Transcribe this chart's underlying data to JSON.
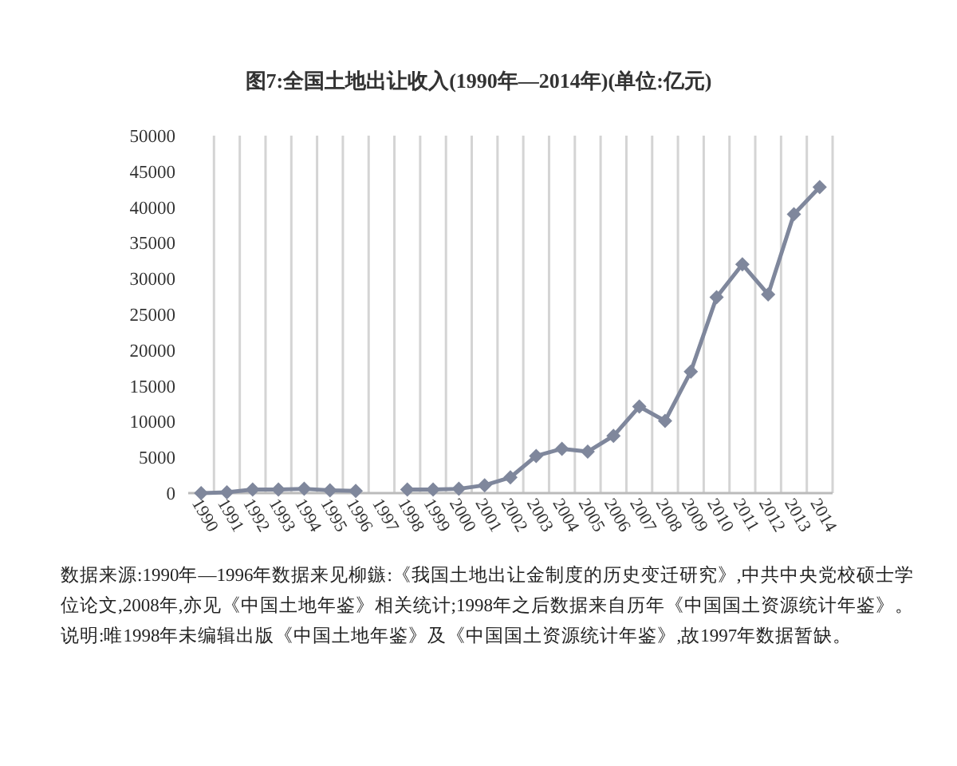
{
  "chart_data": {
    "type": "line",
    "title": "图7:全国土地出让收入(1990年—2014年)(单位:亿元)",
    "categories": [
      "1990",
      "1991",
      "1992",
      "1993",
      "1994",
      "1995",
      "1996",
      "1997",
      "1998",
      "1999",
      "2000",
      "2001",
      "2002",
      "2003",
      "2004",
      "2005",
      "2006",
      "2007",
      "2008",
      "2009",
      "2010",
      "2011",
      "2012",
      "2013",
      "2014"
    ],
    "series": [
      {
        "color": "#7f879c",
        "values": [
          0,
          100,
          500,
          500,
          600,
          400,
          300,
          null,
          500,
          500,
          600,
          1100,
          2200,
          5200,
          6200,
          5800,
          8000,
          12100,
          10100,
          17000,
          27400,
          32000,
          27800,
          39000,
          42800
        ]
      }
    ],
    "ylim": [
      0,
      50000
    ],
    "yticks": [
      0,
      5000,
      10000,
      15000,
      20000,
      25000,
      30000,
      35000,
      40000,
      45000,
      50000
    ],
    "grid": "x",
    "marker": "diamond",
    "line_style": "solid",
    "annotations": [
      "数据来源:1990年—1996年数据来见柳鏃:《我国土地出让金制度的历史变迁研究》,中共中央党校硕士学位论文,2008年,亦见《中国土地年鉴》相关统计;1998年之后数据来自历年《中国国土资源统计年鉴》。",
      "说明:唯1998年未编辑出版《中国土地年鉴》及《中国国土资源统计年鉴》,故1997年数据暂缺。"
    ]
  }
}
